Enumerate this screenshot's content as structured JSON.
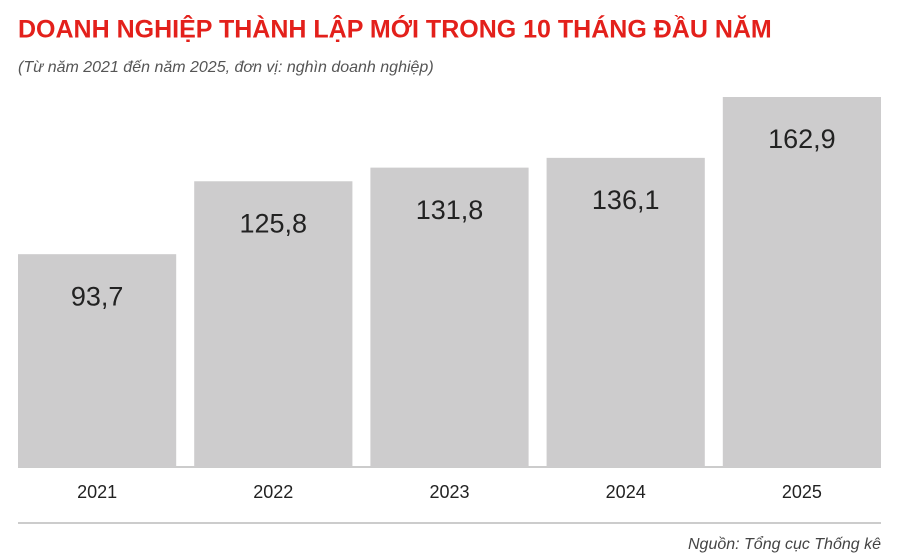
{
  "chart_data": {
    "type": "bar",
    "title": "DOANH NGHIỆP THÀNH LẬP MỚI TRONG 10 THÁNG ĐẦU NĂM",
    "subtitle": "(Từ năm 2021 đến năm 2025, đơn vị: nghìn doanh nghiệp)",
    "source": "Nguồn: Tổng cục Thống kê",
    "categories": [
      "2021",
      "2022",
      "2023",
      "2024",
      "2025"
    ],
    "values": [
      93.7,
      125.8,
      131.8,
      136.1,
      162.9
    ],
    "value_labels": [
      "93,7",
      "125,8",
      "131,8",
      "136,1",
      "162,9"
    ],
    "color": "#cdcccd"
  }
}
